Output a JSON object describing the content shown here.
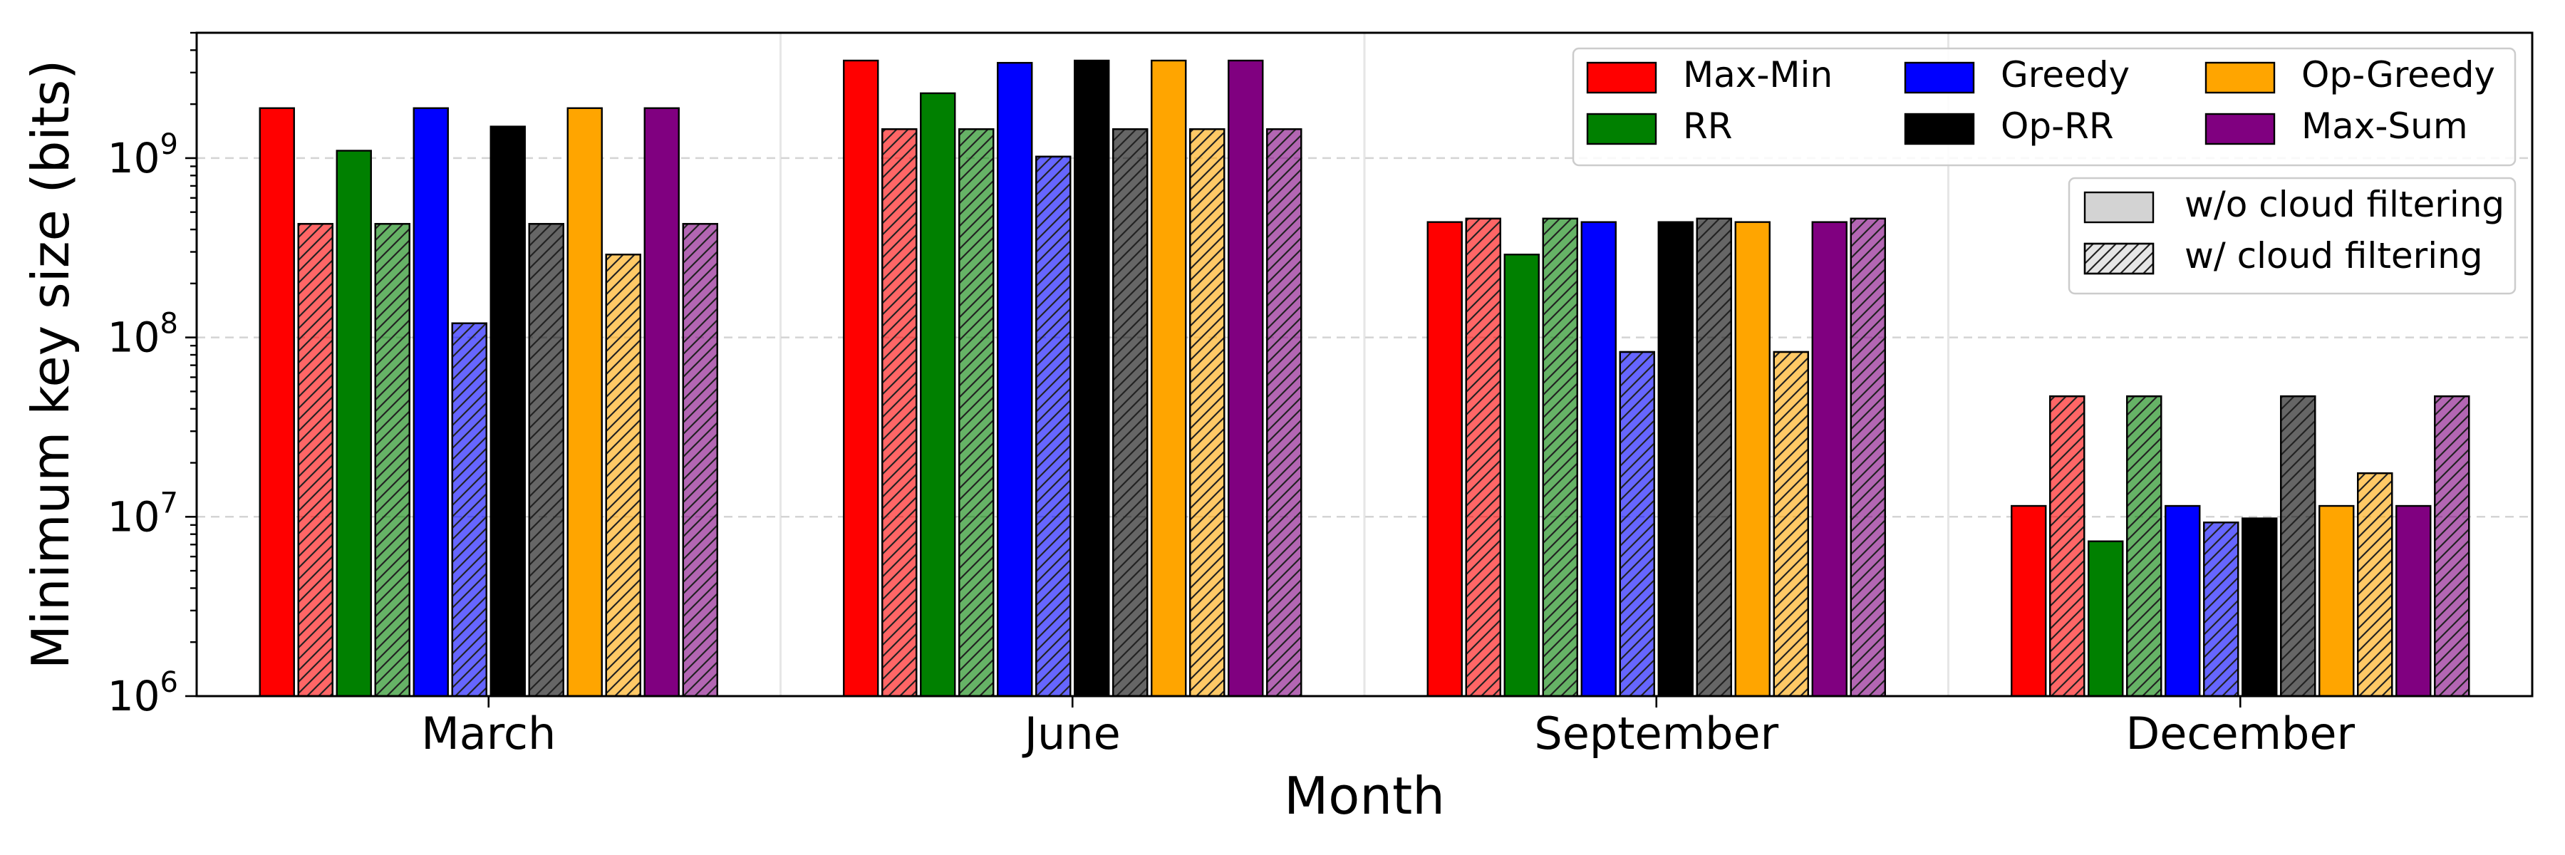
{
  "chart_data": {
    "type": "bar",
    "xlabel": "Month",
    "ylabel": "Minimum key size (bits)",
    "yscale": "log",
    "ylim": [
      1000000,
      5000000000
    ],
    "yticks": [
      {
        "value": 1000000,
        "base": "10",
        "exp": "6"
      },
      {
        "value": 10000000,
        "base": "10",
        "exp": "7"
      },
      {
        "value": 100000000,
        "base": "10",
        "exp": "8"
      },
      {
        "value": 1000000000,
        "base": "10",
        "exp": "9"
      }
    ],
    "grid": true,
    "categories": [
      "March",
      "June",
      "September",
      "December"
    ],
    "colors": {
      "Max-Min": "#ff0000",
      "RR": "#008000",
      "Greedy": "#0000ff",
      "Op-RR": "#000000",
      "Op-Greedy": "#ffa500",
      "Max-Sum": "#800080"
    },
    "series": [
      {
        "name": "Max-Min",
        "filtering": "w/o cloud filtering",
        "values": [
          1900000000,
          3500000000,
          440000000,
          11500000
        ]
      },
      {
        "name": "Max-Min",
        "filtering": "w/ cloud filtering",
        "values": [
          430000000,
          1450000000,
          460000000,
          47000000
        ]
      },
      {
        "name": "RR",
        "filtering": "w/o cloud filtering",
        "values": [
          1100000000,
          2300000000,
          290000000,
          7300000
        ]
      },
      {
        "name": "RR",
        "filtering": "w/ cloud filtering",
        "values": [
          430000000,
          1450000000,
          460000000,
          47000000
        ]
      },
      {
        "name": "Greedy",
        "filtering": "w/o cloud filtering",
        "values": [
          1900000000,
          3400000000,
          440000000,
          11500000
        ]
      },
      {
        "name": "Greedy",
        "filtering": "w/ cloud filtering",
        "values": [
          120000000,
          1020000000,
          83000000,
          9300000
        ]
      },
      {
        "name": "Op-RR",
        "filtering": "w/o cloud filtering",
        "values": [
          1500000000,
          3500000000,
          440000000,
          9800000
        ]
      },
      {
        "name": "Op-RR",
        "filtering": "w/ cloud filtering",
        "values": [
          430000000,
          1450000000,
          460000000,
          47000000
        ]
      },
      {
        "name": "Op-Greedy",
        "filtering": "w/o cloud filtering",
        "values": [
          1900000000,
          3500000000,
          440000000,
          11500000
        ]
      },
      {
        "name": "Op-Greedy",
        "filtering": "w/ cloud filtering",
        "values": [
          290000000,
          1450000000,
          83000000,
          17500000
        ]
      },
      {
        "name": "Max-Sum",
        "filtering": "w/o cloud filtering",
        "values": [
          1900000000,
          3500000000,
          440000000,
          11500000
        ]
      },
      {
        "name": "Max-Sum",
        "filtering": "w/ cloud filtering",
        "values": [
          430000000,
          1450000000,
          460000000,
          47000000
        ]
      }
    ],
    "legend": {
      "placement": "top-right",
      "algorithms": [
        "Max-Min",
        "RR",
        "Greedy",
        "Op-RR",
        "Op-Greedy",
        "Max-Sum"
      ],
      "hatch": [
        "w/o cloud filtering",
        "w/ cloud filtering"
      ]
    }
  }
}
